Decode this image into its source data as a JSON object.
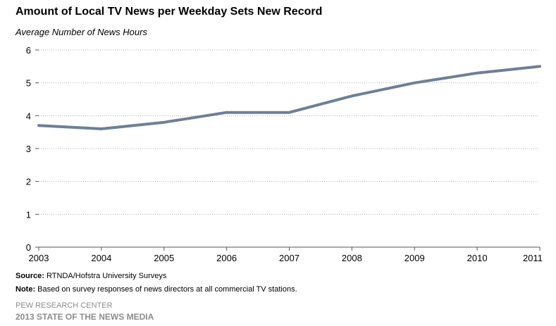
{
  "chart_data": {
    "type": "line",
    "title": "Amount of Local TV News per Weekday Sets New Record",
    "subtitle": "Average Number of News Hours",
    "xlabel": "",
    "ylabel": "Average Number of News Hours",
    "categories": [
      "2003",
      "2004",
      "2005",
      "2006",
      "2007",
      "2008",
      "2009",
      "2010",
      "2011"
    ],
    "series": [
      {
        "name": "Average Number of News Hours",
        "values": [
          3.7,
          3.6,
          3.8,
          4.1,
          4.1,
          4.6,
          5.0,
          5.3,
          5.5
        ],
        "color": "#6e7f97"
      }
    ],
    "ylim": [
      0,
      6
    ],
    "yticks": [
      "0",
      "1",
      "2",
      "3",
      "4",
      "5",
      "6"
    ],
    "grid": true
  },
  "footer": {
    "source_label": "Source:",
    "source_text": "RTNDA/Hofstra University Surveys",
    "note_label": "Note:",
    "note_text": "Based on survey responses of news directors at all commercial TV stations.",
    "organization": "PEW RESEARCH CENTER",
    "report": "2013 STATE OF THE NEWS MEDIA"
  },
  "colors": {
    "line": "#6e7f97",
    "grid": "#b0b0b0",
    "footer_text": "#8c8c8c"
  }
}
